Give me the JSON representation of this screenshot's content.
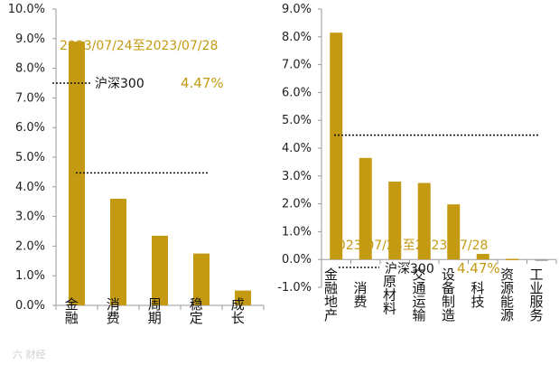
{
  "colors": {
    "bar": "#c49a12",
    "axis": "#9a9a9a",
    "text": "#222222",
    "ref": "#111111"
  },
  "watermark": "六 财经",
  "chart_data": [
    {
      "type": "bar",
      "categories": [
        "金融",
        "消费",
        "周期",
        "稳定",
        "成长"
      ],
      "values": [
        8.9,
        3.6,
        2.35,
        1.75,
        0.5
      ],
      "ylim": [
        0,
        10
      ],
      "yticks": [
        "0.0%",
        "1.0%",
        "2.0%",
        "3.0%",
        "4.0%",
        "5.0%",
        "6.0%",
        "7.0%",
        "8.0%",
        "9.0%",
        "10.0%"
      ],
      "date_range": "2023/07/24至2023/07/28",
      "legend": {
        "label": "沪深300",
        "value": "4.47%"
      },
      "reference_line": 4.47,
      "grid": false
    },
    {
      "type": "bar",
      "categories": [
        "金融地产",
        "消费",
        "原材料",
        "交通运输",
        "设备制造",
        "科技",
        "资源能源",
        "工业服务"
      ],
      "values": [
        8.15,
        3.65,
        2.8,
        2.75,
        1.98,
        0.2,
        0.0,
        -0.05
      ],
      "ylim": [
        -1,
        9
      ],
      "yticks": [
        "-1.0%",
        "0.0%",
        "1.0%",
        "2.0%",
        "3.0%",
        "4.0%",
        "5.0%",
        "6.0%",
        "7.0%",
        "8.0%",
        "9.0%"
      ],
      "date_range": "2023/07/24至2023/07/28",
      "legend": {
        "label": "沪深300",
        "value": "4.47%"
      },
      "reference_line": 4.47,
      "grid": false
    }
  ]
}
